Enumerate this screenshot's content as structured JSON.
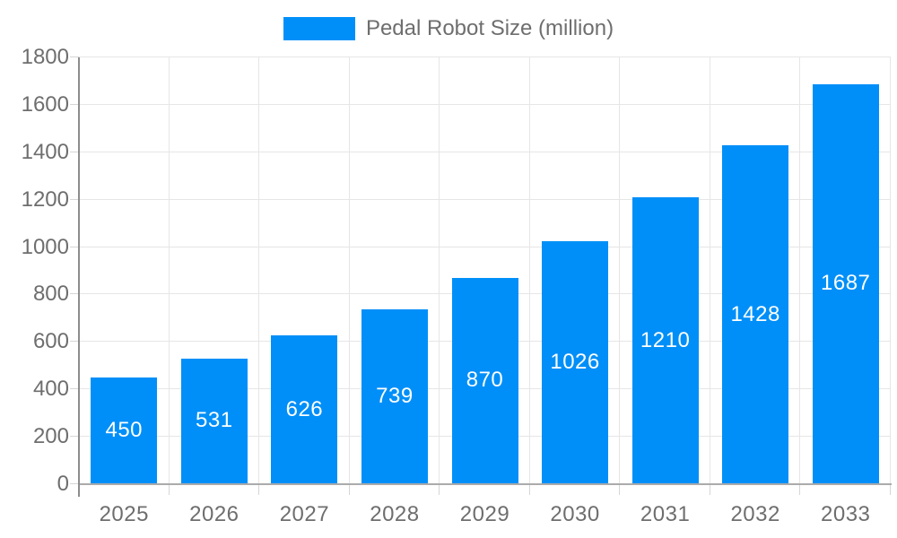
{
  "chart_data": {
    "type": "bar",
    "title": "Pedal Robot Size (million)",
    "categories": [
      "2025",
      "2026",
      "2027",
      "2028",
      "2029",
      "2030",
      "2031",
      "2032",
      "2033"
    ],
    "values": [
      450,
      531,
      626,
      739,
      870,
      1026,
      1210,
      1428,
      1687
    ],
    "xlabel": "",
    "ylabel": "",
    "ylim": [
      0,
      1800
    ],
    "yticks": [
      0,
      200,
      400,
      600,
      800,
      1000,
      1200,
      1400,
      1600,
      1800
    ],
    "grid": true,
    "legend_position": "top",
    "legend_entries": [
      "Pedal Robot Size (million)"
    ],
    "bar_labels_visible": true
  },
  "colors": {
    "bar": "#008ff8",
    "bar_value_text": "#ffffff",
    "axis_text": "#6e6e6e",
    "grid_line": "#e6e6e6",
    "y_axis_line": "#8c8c8c",
    "x_axis_line": "#ababab",
    "tick_mark": "#d6d6d6",
    "background": "#ffffff"
  }
}
